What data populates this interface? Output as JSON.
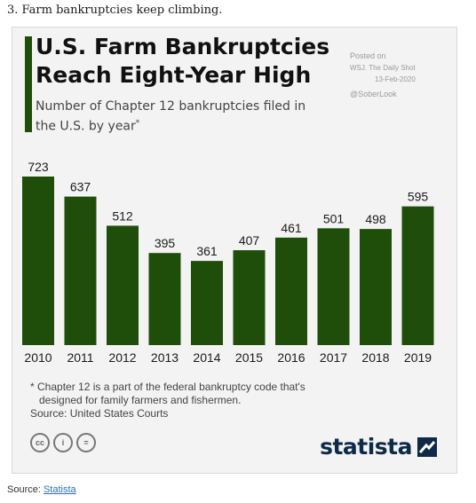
{
  "intro": "3. Farm bankruptcies keep climbing.",
  "header": {
    "title": "U.S. Farm Bankruptcies Reach Eight-Year High",
    "subtitle": "Number of Chapter 12 bankruptcies filed in the U.S. by year",
    "subtitle_mark": "*"
  },
  "posted": {
    "label": "Posted on",
    "outlet": "WSJ. The Daily Shot",
    "date": "13-Feb-2020",
    "handle": "@SoberLook"
  },
  "footnote": {
    "line1": "* Chapter 12 is a part of the federal bankruptcy code that's",
    "line2": "designed for family farmers and fishermen.",
    "source": "Source: United States Courts"
  },
  "license_icons": [
    {
      "name": "cc-icon",
      "text": "cc"
    },
    {
      "name": "attribution-icon",
      "text": "i"
    },
    {
      "name": "no-derivatives-icon",
      "text": "="
    }
  ],
  "brand": {
    "name": "statista",
    "color": "#0e2a47"
  },
  "footer": {
    "prefix": "Source: ",
    "link": "Statista"
  },
  "colors": {
    "bar": "#1f4e0a",
    "accent": "#1f4e0a"
  },
  "chart_data": {
    "type": "bar",
    "title": "U.S. Farm Bankruptcies Reach Eight-Year High",
    "subtitle": "Number of Chapter 12 bankruptcies filed in the U.S. by year*",
    "categories": [
      "2010",
      "2011",
      "2012",
      "2013",
      "2014",
      "2015",
      "2016",
      "2017",
      "2018",
      "2019"
    ],
    "values": [
      723,
      637,
      512,
      395,
      361,
      407,
      461,
      501,
      498,
      595
    ],
    "xlabel": "",
    "ylabel": "",
    "ylim": [
      0,
      723
    ],
    "grid": false,
    "legend": "none",
    "data_labels": true
  }
}
